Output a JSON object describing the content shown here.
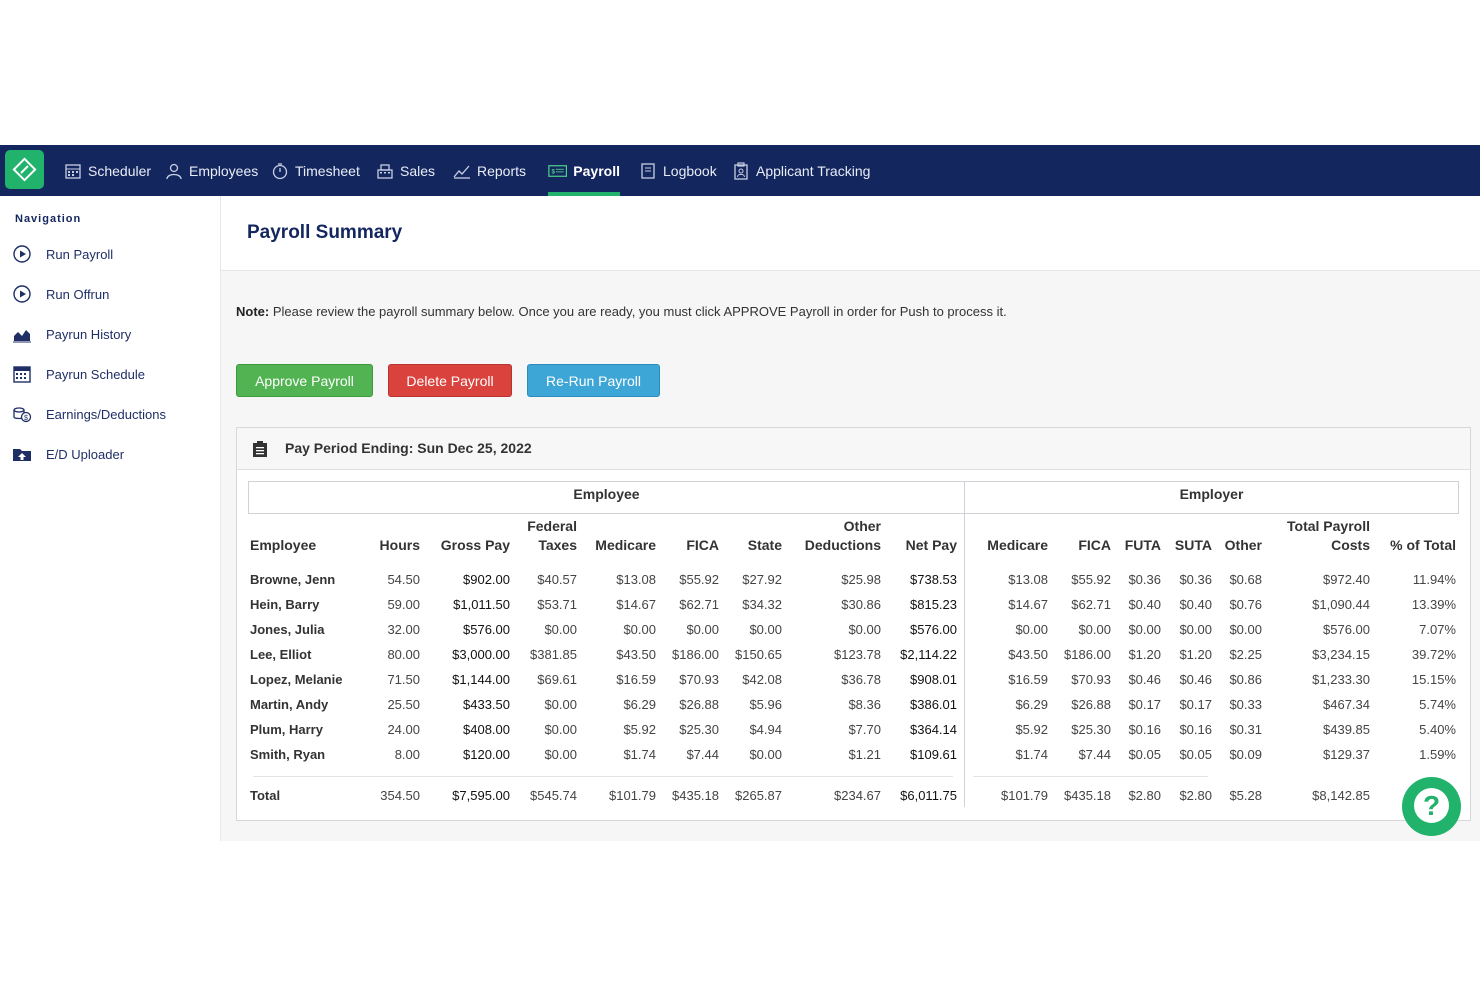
{
  "nav": {
    "items": [
      {
        "label": "Scheduler",
        "icon": "calendar-icon"
      },
      {
        "label": "Employees",
        "icon": "person-icon"
      },
      {
        "label": "Timesheet",
        "icon": "stopwatch-icon"
      },
      {
        "label": "Sales",
        "icon": "register-icon"
      },
      {
        "label": "Reports",
        "icon": "chart-icon"
      },
      {
        "label": "Payroll",
        "icon": "money-icon",
        "active": true
      },
      {
        "label": "Logbook",
        "icon": "book-icon"
      },
      {
        "label": "Applicant Tracking",
        "icon": "clipboard-icon"
      }
    ]
  },
  "sidebar": {
    "heading": "Navigation",
    "items": [
      {
        "label": "Run Payroll",
        "icon": "play-circle-icon"
      },
      {
        "label": "Run Offrun",
        "icon": "play-circle-icon"
      },
      {
        "label": "Payrun History",
        "icon": "area-chart-icon"
      },
      {
        "label": "Payrun Schedule",
        "icon": "calendar-icon"
      },
      {
        "label": "Earnings/Deductions",
        "icon": "coins-icon"
      },
      {
        "label": "E/D Uploader",
        "icon": "folder-upload-icon"
      }
    ]
  },
  "page": {
    "title": "Payroll Summary",
    "note_label": "Note:",
    "note_text": " Please review the payroll summary below. Once you are ready, you must click APPROVE Payroll in order for Push to process it."
  },
  "buttons": {
    "approve": "Approve Payroll",
    "delete": "Delete Payroll",
    "rerun": "Re-Run Payroll"
  },
  "panel": {
    "title": "Pay Period Ending: Sun Dec 25, 2022",
    "group_employee": "Employee",
    "group_employer": "Employer"
  },
  "table": {
    "headers": {
      "employee": "Employee",
      "hours": "Hours",
      "gross": "Gross Pay",
      "fed1": "Federal",
      "fed2": "Taxes",
      "medicare": "Medicare",
      "fica": "FICA",
      "state": "State",
      "other1": "Other",
      "other2": "Deductions",
      "net": "Net Pay",
      "er_medicare": "Medicare",
      "er_fica": "FICA",
      "futa": "FUTA",
      "suta": "SUTA",
      "er_other": "Other",
      "tpc1": "Total Payroll",
      "tpc2": "Costs",
      "pct": "% of Total"
    },
    "rows": [
      {
        "name": "Browne, Jenn",
        "hours": "54.50",
        "gross": "$902.00",
        "fed": "$40.57",
        "medicare": "$13.08",
        "fica": "$55.92",
        "state": "$27.92",
        "other": "$25.98",
        "net": "$738.53",
        "er_medicare": "$13.08",
        "er_fica": "$55.92",
        "futa": "$0.36",
        "suta": "$0.36",
        "er_other": "$0.68",
        "tpc": "$972.40",
        "pct": "11.94%"
      },
      {
        "name": "Hein, Barry",
        "hours": "59.00",
        "gross": "$1,011.50",
        "fed": "$53.71",
        "medicare": "$14.67",
        "fica": "$62.71",
        "state": "$34.32",
        "other": "$30.86",
        "net": "$815.23",
        "er_medicare": "$14.67",
        "er_fica": "$62.71",
        "futa": "$0.40",
        "suta": "$0.40",
        "er_other": "$0.76",
        "tpc": "$1,090.44",
        "pct": "13.39%"
      },
      {
        "name": "Jones, Julia",
        "hours": "32.00",
        "gross": "$576.00",
        "fed": "$0.00",
        "medicare": "$0.00",
        "fica": "$0.00",
        "state": "$0.00",
        "other": "$0.00",
        "net": "$576.00",
        "er_medicare": "$0.00",
        "er_fica": "$0.00",
        "futa": "$0.00",
        "suta": "$0.00",
        "er_other": "$0.00",
        "tpc": "$576.00",
        "pct": "7.07%"
      },
      {
        "name": "Lee, Elliot",
        "hours": "80.00",
        "gross": "$3,000.00",
        "fed": "$381.85",
        "medicare": "$43.50",
        "fica": "$186.00",
        "state": "$150.65",
        "other": "$123.78",
        "net": "$2,114.22",
        "er_medicare": "$43.50",
        "er_fica": "$186.00",
        "futa": "$1.20",
        "suta": "$1.20",
        "er_other": "$2.25",
        "tpc": "$3,234.15",
        "pct": "39.72%"
      },
      {
        "name": "Lopez, Melanie",
        "hours": "71.50",
        "gross": "$1,144.00",
        "fed": "$69.61",
        "medicare": "$16.59",
        "fica": "$70.93",
        "state": "$42.08",
        "other": "$36.78",
        "net": "$908.01",
        "er_medicare": "$16.59",
        "er_fica": "$70.93",
        "futa": "$0.46",
        "suta": "$0.46",
        "er_other": "$0.86",
        "tpc": "$1,233.30",
        "pct": "15.15%"
      },
      {
        "name": "Martin, Andy",
        "hours": "25.50",
        "gross": "$433.50",
        "fed": "$0.00",
        "medicare": "$6.29",
        "fica": "$26.88",
        "state": "$5.96",
        "other": "$8.36",
        "net": "$386.01",
        "er_medicare": "$6.29",
        "er_fica": "$26.88",
        "futa": "$0.17",
        "suta": "$0.17",
        "er_other": "$0.33",
        "tpc": "$467.34",
        "pct": "5.74%"
      },
      {
        "name": "Plum, Harry",
        "hours": "24.00",
        "gross": "$408.00",
        "fed": "$0.00",
        "medicare": "$5.92",
        "fica": "$25.30",
        "state": "$4.94",
        "other": "$7.70",
        "net": "$364.14",
        "er_medicare": "$5.92",
        "er_fica": "$25.30",
        "futa": "$0.16",
        "suta": "$0.16",
        "er_other": "$0.31",
        "tpc": "$439.85",
        "pct": "5.40%"
      },
      {
        "name": "Smith, Ryan",
        "hours": "8.00",
        "gross": "$120.00",
        "fed": "$0.00",
        "medicare": "$1.74",
        "fica": "$7.44",
        "state": "$0.00",
        "other": "$1.21",
        "net": "$109.61",
        "er_medicare": "$1.74",
        "er_fica": "$7.44",
        "futa": "$0.05",
        "suta": "$0.05",
        "er_other": "$0.09",
        "tpc": "$129.37",
        "pct": "1.59%"
      }
    ],
    "total": {
      "name": "Total",
      "hours": "354.50",
      "gross": "$7,595.00",
      "fed": "$545.74",
      "medicare": "$101.79",
      "fica": "$435.18",
      "state": "$265.87",
      "other": "$234.67",
      "net": "$6,011.75",
      "er_medicare": "$101.79",
      "er_fica": "$435.18",
      "futa": "$2.80",
      "suta": "$2.80",
      "er_other": "$5.28",
      "tpc": "$8,142.85"
    }
  },
  "help": {
    "label": "?"
  }
}
